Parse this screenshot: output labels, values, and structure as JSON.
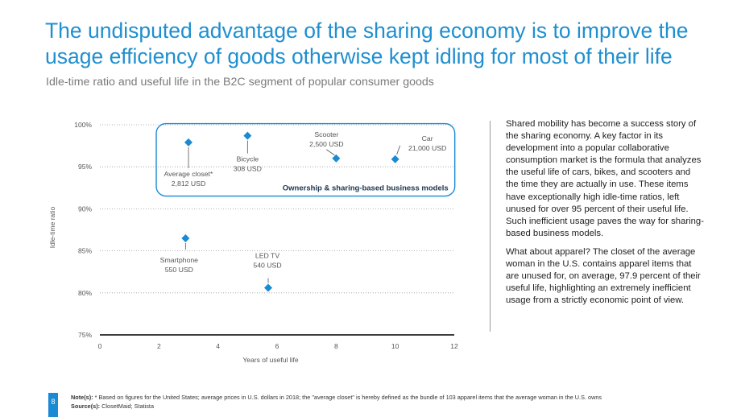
{
  "title_lines": [
    "The undisputed advantage of the sharing economy is to improve the",
    "usage efficiency of goods otherwise kept idling for most of their life"
  ],
  "subtitle": "Idle-time ratio and useful life in the B2C segment of popular consumer goods",
  "chart_data": {
    "type": "scatter",
    "xlabel": "Years of useful life",
    "ylabel": "Idle-time ratio",
    "xlim": [
      0,
      12
    ],
    "ylim": [
      75,
      100
    ],
    "x_ticks": [
      "0",
      "2",
      "4",
      "6",
      "8",
      "10",
      "12"
    ],
    "y_ticks": [
      "75%",
      "80%",
      "85%",
      "90%",
      "95%",
      "100%"
    ],
    "grid": "horizontal dotted",
    "marker_color": "#1a8ad4",
    "points": [
      {
        "x": 3.0,
        "y": 97.9,
        "label_lines": [
          "Average closet*",
          "2,812 USD"
        ]
      },
      {
        "x": 5.0,
        "y": 98.7,
        "label_lines": [
          "Bicycle",
          "308 USD"
        ]
      },
      {
        "x": 8.0,
        "y": 96.0,
        "label_lines": [
          "Scooter",
          "2,500 USD"
        ]
      },
      {
        "x": 10.0,
        "y": 95.9,
        "label_lines": [
          "Car",
          "21,000 USD"
        ]
      },
      {
        "x": 2.9,
        "y": 86.5,
        "label_lines": [
          "Smartphone",
          "550 USD"
        ]
      },
      {
        "x": 5.7,
        "y": 80.6,
        "label_lines": [
          "LED TV",
          "540 USD"
        ]
      }
    ],
    "group_label": "Ownership & sharing-based business models",
    "group_color": "#1a8ad4"
  },
  "side_text": [
    "Shared mobility has become a success story of the sharing economy. A key factor in its development into a popular collaborative consumption market is the formula that analyzes the useful life of cars, bikes, and scooters and the time they are actually in use. These items have exceptionally high idle-time ratios, left unused for over 95 percent of their useful life. Such inefficient usage paves the way for sharing-based business models.",
    "What about apparel? The closet of the average woman in the U.S. contains apparel items that are unused for, on average, 97.9 percent of their useful life, highlighting an extremely inefficient usage from a strictly economic point of view."
  ],
  "footer": {
    "page_number": "8",
    "notes_label": "Note(s):",
    "notes_text": " * Based on figures for the United States; average prices in U.S. dollars in 2018; the \"average closet\" is hereby defined as the bundle of 103 apparel items that the average woman in the U.S. owns",
    "source_label": "Source(s):",
    "source_text": " ClosetMaid; Statista"
  }
}
